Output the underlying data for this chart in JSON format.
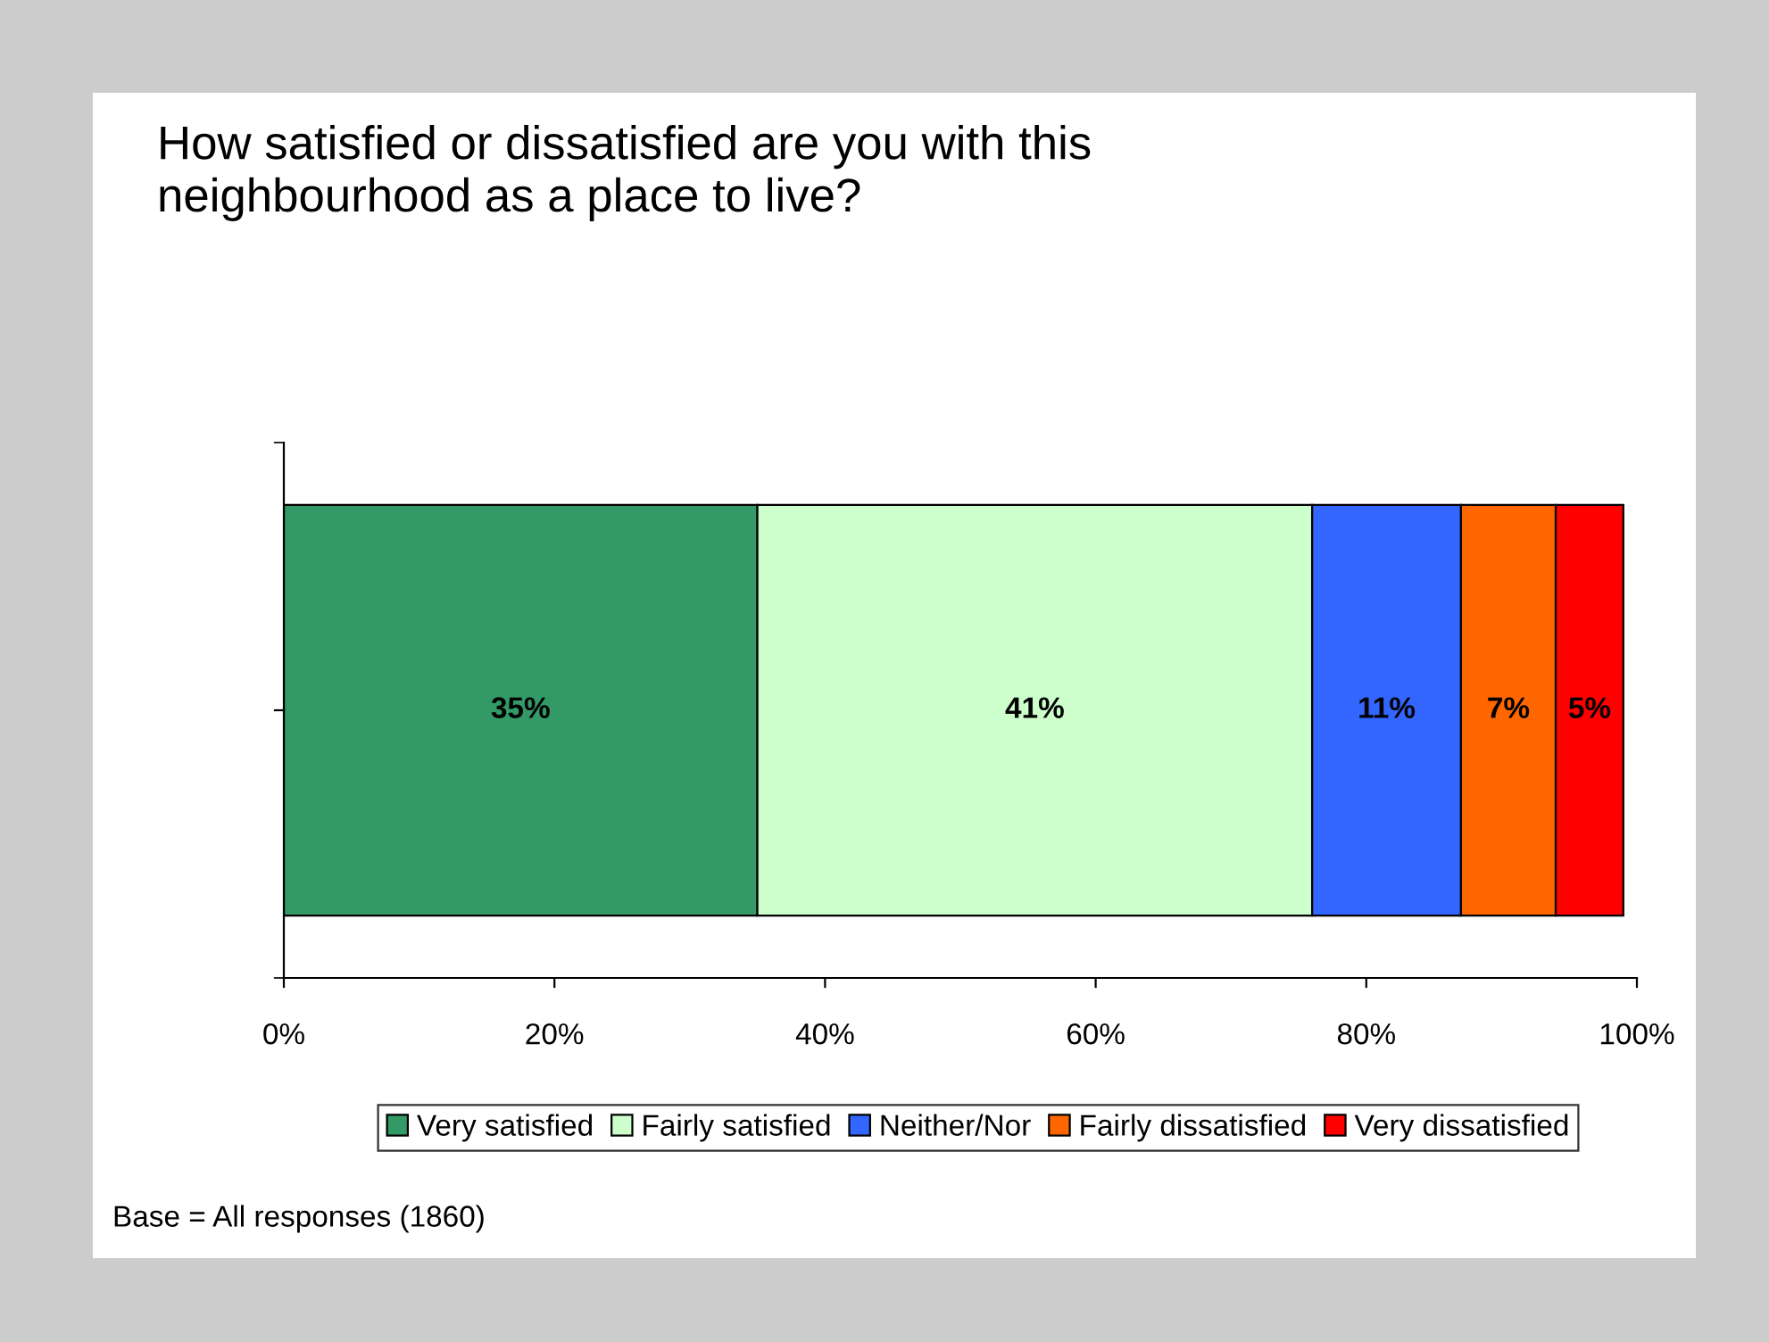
{
  "chart_data": {
    "type": "bar",
    "orientation": "horizontal",
    "stacked": true,
    "title": "How satisfied or dissatisfied are you with this\nneighbourhood as a place to live?",
    "categories": [
      null
    ],
    "series": [
      {
        "name": "Very satisfied",
        "color": "#339966",
        "values": [
          35
        ]
      },
      {
        "name": "Fairly satisfied",
        "color": "#ccffcc",
        "values": [
          41
        ]
      },
      {
        "name": "Neither/Nor",
        "color": "#3366ff",
        "values": [
          11
        ]
      },
      {
        "name": "Fairly dissatisfied",
        "color": "#ff6600",
        "values": [
          7
        ]
      },
      {
        "name": "Very dissatisfied",
        "color": "#ff0000",
        "values": [
          5
        ]
      }
    ],
    "xlim": [
      0,
      100
    ],
    "xticks": [
      {
        "value": 0,
        "label": "0%"
      },
      {
        "value": 20,
        "label": "20%"
      },
      {
        "value": 40,
        "label": "40%"
      },
      {
        "value": 60,
        "label": "60%"
      },
      {
        "value": 80,
        "label": "80%"
      },
      {
        "value": 100,
        "label": "100%"
      }
    ],
    "value_labels": [
      "35%",
      "41%",
      "11%",
      "7%",
      "5%"
    ],
    "legend": "bottom",
    "grid": false,
    "annotations": [
      "Base = All responses (1860)"
    ]
  }
}
